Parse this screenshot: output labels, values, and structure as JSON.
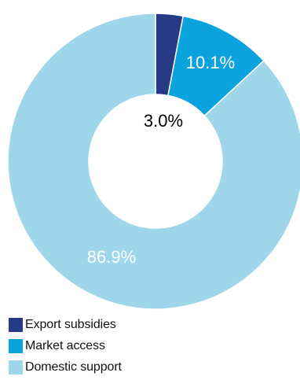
{
  "chart_data": {
    "type": "pie",
    "variant": "donut",
    "title": "",
    "categories": [
      "Export subsidies",
      "Market access",
      "Domestic support"
    ],
    "values": [
      3.0,
      10.1,
      86.9
    ],
    "data_labels": [
      "3.0%",
      "10.1%",
      "86.9%"
    ],
    "colors": [
      "#263a86",
      "#0aa3dd",
      "#9fd6e9"
    ],
    "legend_position": "bottom-left",
    "start_angle": "12 o'clock",
    "direction": "clockwise"
  },
  "label_colors": {
    "inside": "#ffffff",
    "center": "#000000"
  }
}
